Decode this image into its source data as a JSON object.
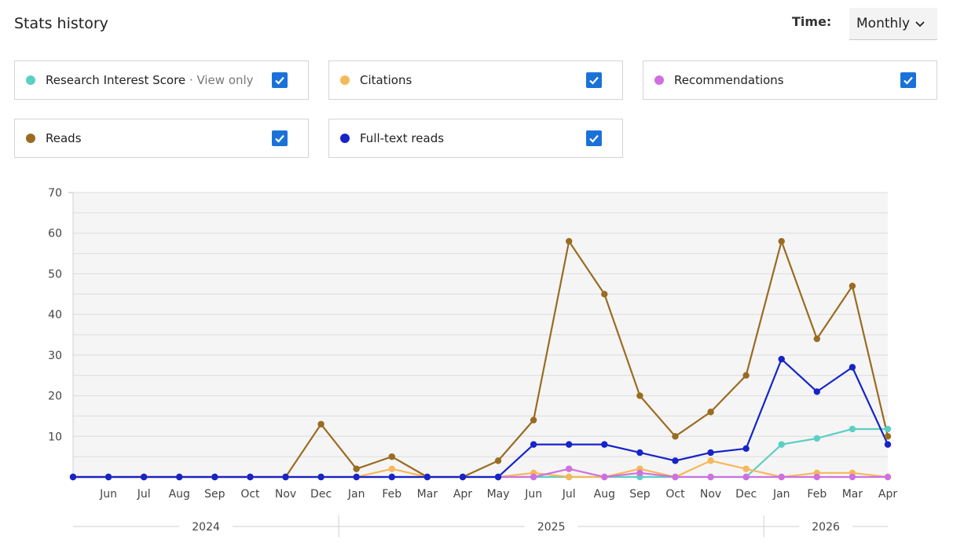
{
  "header": {
    "title": "Stats history",
    "time_label": "Time:",
    "time_value": "Monthly"
  },
  "cards": [
    {
      "label": "Research Interest Score",
      "sub": " · View only",
      "color": "#5ccfc3",
      "checked": true
    },
    {
      "label": "Citations",
      "sub": "",
      "color": "#f5b85a",
      "checked": true
    },
    {
      "label": "Recommendations",
      "sub": "",
      "color": "#cf70e0",
      "checked": true
    },
    {
      "label": "Reads",
      "sub": "",
      "color": "#9a6b22",
      "checked": true
    },
    {
      "label": "Full-text reads",
      "sub": "",
      "color": "#1624c8",
      "checked": true
    }
  ],
  "chart_data": {
    "type": "line",
    "x": [
      "",
      "Jun",
      "Jul",
      "Aug",
      "Sep",
      "Oct",
      "Nov",
      "Dec",
      "Jan",
      "Feb",
      "Mar",
      "Apr",
      "May",
      "Jun",
      "Jul",
      "Aug",
      "Sep",
      "Oct",
      "Nov",
      "Dec",
      "Jan",
      "Feb",
      "Mar",
      "Apr"
    ],
    "years": [
      "2024",
      "2025",
      "2026"
    ],
    "yticks": [
      10,
      20,
      30,
      40,
      50,
      60,
      70
    ],
    "ylim": [
      0,
      70
    ],
    "grid": true,
    "legend": "top",
    "series": [
      {
        "name": "Research Interest Score",
        "color": "#5ccfc3",
        "values": [
          0,
          0,
          0,
          0,
          0,
          0,
          0,
          0,
          0,
          0,
          0,
          0,
          0,
          0,
          0,
          0,
          0,
          0,
          0,
          0,
          8,
          9.5,
          11.8,
          11.8
        ]
      },
      {
        "name": "Citations",
        "color": "#f5b85a",
        "values": [
          0,
          0,
          0,
          0,
          0,
          0,
          0,
          0,
          0,
          2,
          0,
          0,
          0,
          1,
          0,
          0,
          2,
          0,
          4,
          2,
          0,
          1,
          1,
          0
        ]
      },
      {
        "name": "Recommendations",
        "color": "#cf70e0",
        "values": [
          0,
          0,
          0,
          0,
          0,
          0,
          0,
          0,
          0,
          0,
          0,
          0,
          0,
          0,
          2,
          0,
          1,
          0,
          0,
          0,
          0,
          0,
          0,
          0
        ]
      },
      {
        "name": "Reads",
        "color": "#9a6b22",
        "values": [
          0,
          0,
          0,
          0,
          0,
          0,
          0,
          13,
          2,
          5,
          0,
          0,
          4,
          14,
          58,
          45,
          20,
          10,
          16,
          25,
          58,
          34,
          47,
          10
        ]
      },
      {
        "name": "Full-text reads",
        "color": "#1624c8",
        "values": [
          0,
          0,
          0,
          0,
          0,
          0,
          0,
          0,
          0,
          0,
          0,
          0,
          0,
          8,
          8,
          8,
          6,
          4,
          6,
          7,
          29,
          21,
          27,
          8
        ]
      }
    ]
  }
}
